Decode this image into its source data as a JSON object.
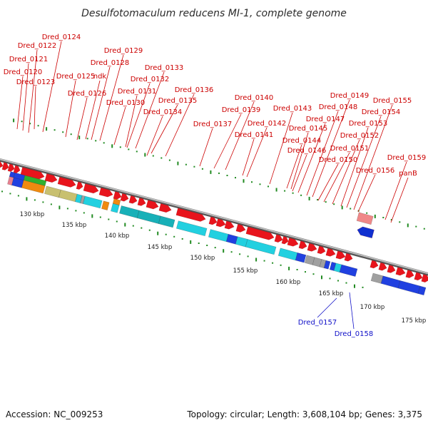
{
  "title": "Desulfotomaculum reducens MI-1, complete genome",
  "footer": {
    "accession": "Accession: NC_009253",
    "summary": "Topology: circular; Length: 3,608,104 bp; Genes: 3,375"
  },
  "colors": {
    "forward_gene": "#e8141c",
    "reverse_gene": "#1030d0",
    "forward_label": "#cc0000",
    "reverse_label": "#1010c8",
    "backbone": "#8a8a8a",
    "tick_dot": "#228b22",
    "cog_cyan": "#22d0e0",
    "cog_teal": "#18b0b8",
    "cog_blue": "#2040e0",
    "cog_orange": "#f08a10",
    "cog_green": "#30b030",
    "cog_khaki": "#c8c070",
    "cog_grey": "#a0a0a0",
    "cog_pink": "#e88090"
  },
  "scale_labels": [
    "130 kbp",
    "135 kbp",
    "140 kbp",
    "145 kbp",
    "150 kbp",
    "155 kbp",
    "160 kbp",
    "165 kbp",
    "170 kbp",
    "175 kbp"
  ],
  "forward_labels": [
    "Dred_0124",
    "Dred_0122",
    "Dred_0121",
    "Dred_0120",
    "Dred_0123",
    "Dred_0125",
    "ndk",
    "Dred_0126",
    "Dred_0129",
    "Dred_0128",
    "Dred_0131",
    "Dred_0130",
    "Dred_0133",
    "Dred_0132",
    "Dred_0134",
    "Dred_0136",
    "Dred_0135",
    "Dred_0137",
    "Dred_0140",
    "Dred_0139",
    "Dred_0142",
    "Dred_0141",
    "Dred_0143",
    "Dred_0144",
    "Dred_0145",
    "Dred_0146",
    "Dred_0147",
    "Dred_0148",
    "Dred_0149",
    "Dred_0150",
    "Dred_0151",
    "Dred_0152",
    "Dred_0153",
    "Dred_0154",
    "Dred_0155",
    "Dred_0156",
    "Dred_0159",
    "panB"
  ],
  "reverse_labels": [
    "Dred_0157",
    "Dred_0158"
  ]
}
